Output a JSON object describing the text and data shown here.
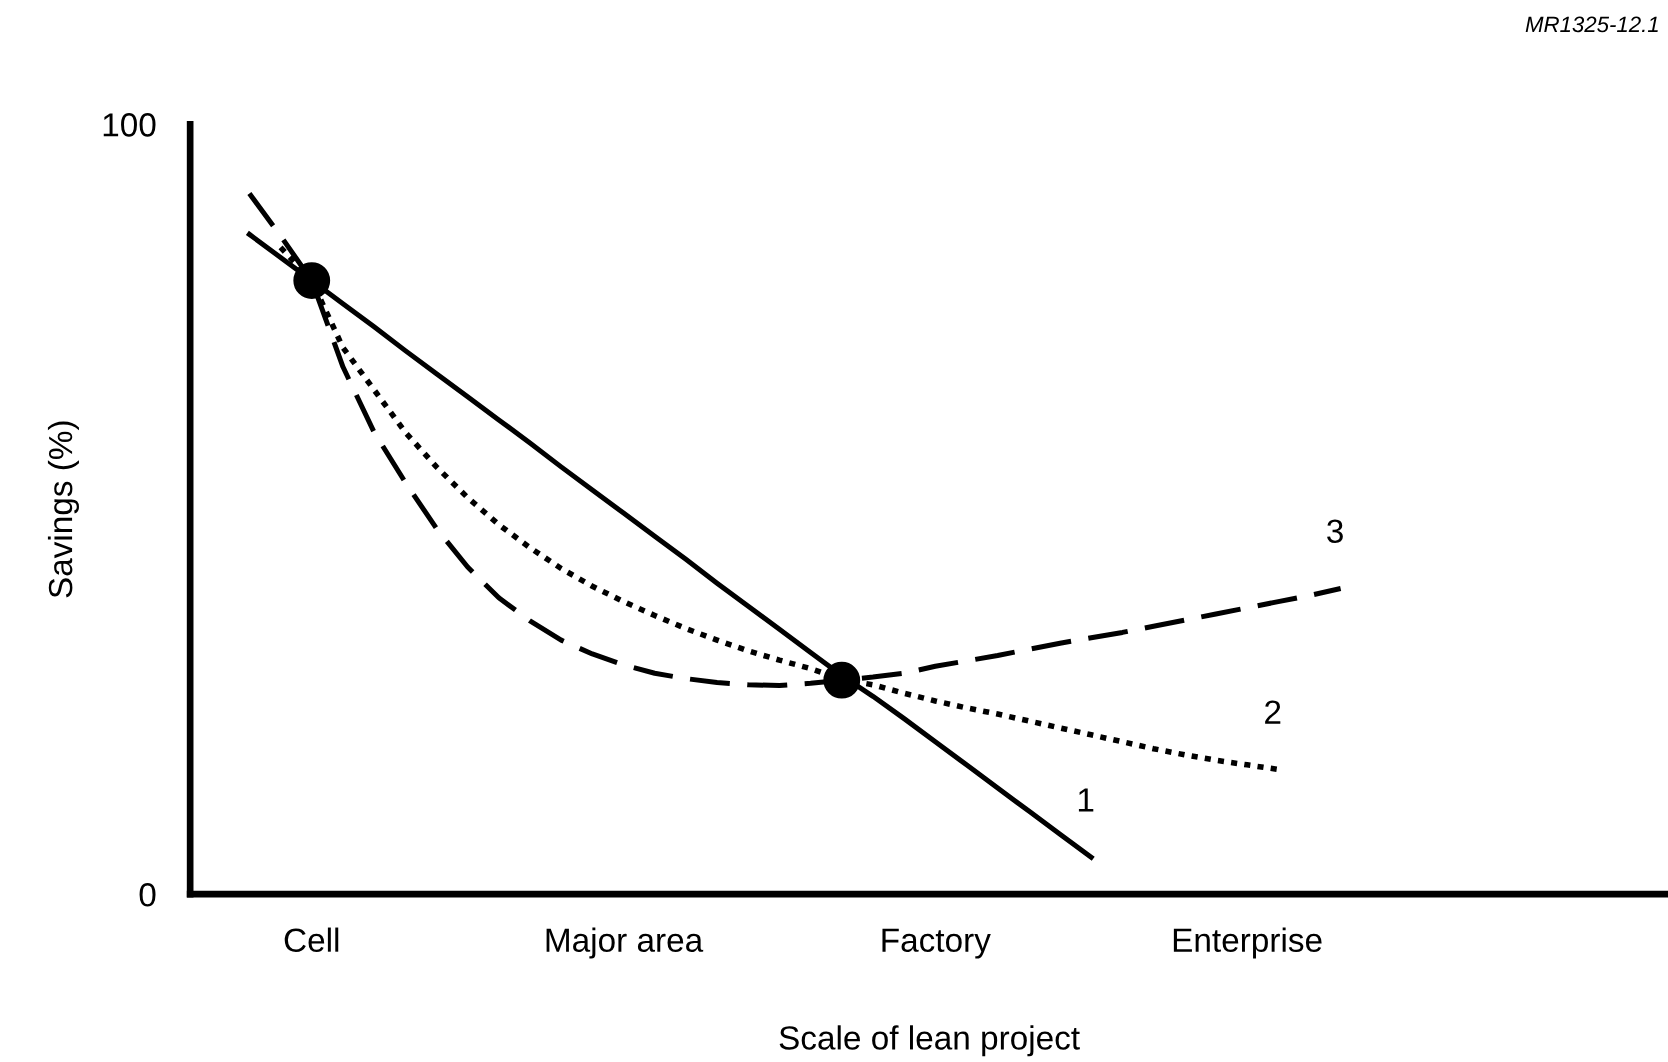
{
  "chart_data": {
    "type": "line",
    "xlabel": "Scale of lean project",
    "ylabel": "Savings (%)",
    "categories": [
      null,
      null,
      "Cell",
      null,
      null,
      null,
      null,
      null,
      null,
      null,
      null,
      null,
      "Major area",
      null,
      null,
      null,
      null,
      null,
      null,
      null,
      null,
      null,
      "Factory",
      null,
      null,
      null,
      null,
      null,
      null,
      null,
      null,
      null,
      "Enterprise",
      null,
      null,
      null,
      null
    ],
    "ylim": [
      0,
      100
    ],
    "yticks": [
      0,
      100
    ],
    "grid": false,
    "legend": false,
    "marker": "none",
    "annotations": [
      "MR1325-12.1"
    ],
    "series": [
      {
        "name": "1",
        "color": "#000000",
        "line_style": "solid",
        "values": [
          85.7,
          82.7,
          79.7,
          76.7,
          73.7,
          70.6,
          67.6,
          64.6,
          61.6,
          58.6,
          55.5,
          52.5,
          49.5,
          46.5,
          43.5,
          40.4,
          37.4,
          34.4,
          31.4,
          28.4,
          25.7,
          22.8,
          19.8,
          16.8,
          13.8,
          10.8,
          7.8,
          4.8,
          null,
          null,
          null,
          null,
          null,
          null,
          null,
          null,
          null
        ]
      },
      {
        "name": "2",
        "color": "#000000",
        "line_style": "dotted",
        "values": [
          null,
          84,
          79.7,
          71,
          65.5,
          60,
          55.5,
          51.5,
          48,
          45,
          42.3,
          40,
          38,
          36.2,
          34.5,
          33,
          31.6,
          30.4,
          29.3,
          27.9,
          27.2,
          26.1,
          25.1,
          24.2,
          23.4,
          22.5,
          21.6,
          20.7,
          19.8,
          18.9,
          18.1,
          17.4,
          16.8,
          16.2,
          null,
          null,
          null
        ]
      },
      {
        "name": "3",
        "color": "#000000",
        "line_style": "dashed",
        "values": [
          91,
          85.5,
          79.7,
          68.5,
          60,
          53.5,
          47.5,
          42.5,
          38.5,
          35.5,
          33,
          31.2,
          29.8,
          28.7,
          28,
          27.5,
          27.2,
          27.1,
          27.4,
          27.8,
          28.2,
          28.7,
          29.6,
          30.3,
          31.0,
          31.8,
          32.6,
          33.3,
          34.0,
          34.8,
          35.6,
          36.4,
          37.2,
          38.0,
          38.8,
          39.7,
          null
        ]
      },
      {
        "type": "scatter",
        "marker": "circle",
        "color": "#000000",
        "values": [
          null,
          null,
          79.7,
          null,
          null,
          null,
          null,
          null,
          null,
          null,
          null,
          null,
          null,
          null,
          null,
          null,
          null,
          null,
          null,
          27.8,
          null,
          null,
          null,
          null,
          null,
          null,
          null,
          null,
          null,
          null,
          null,
          null,
          null,
          null,
          null,
          null,
          null
        ]
      }
    ]
  }
}
